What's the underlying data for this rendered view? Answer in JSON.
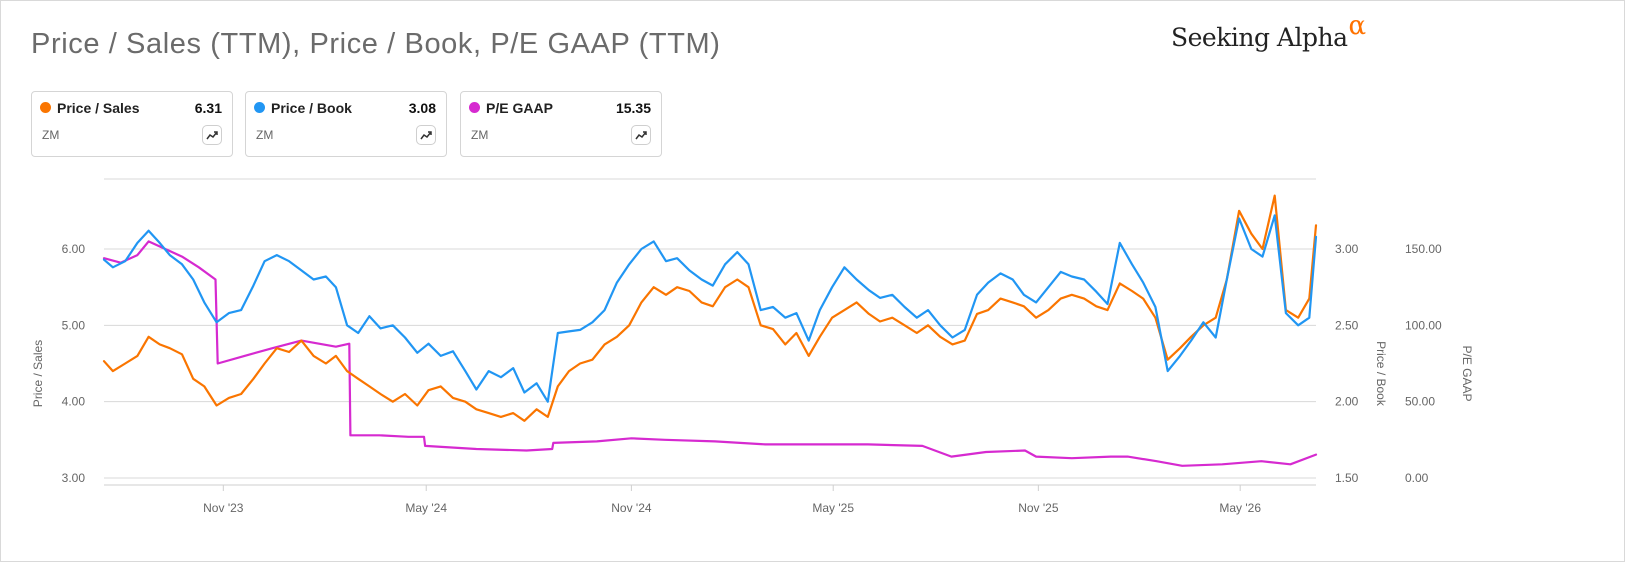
{
  "header": {
    "title": "Price / Sales (TTM), Price / Book, P/E GAAP (TTM)",
    "brand_name": "Seeking Alpha",
    "brand_symbol": "α",
    "brand_symbol_color": "#ff7200"
  },
  "legend": [
    {
      "name": "Price / Sales",
      "value": "6.31",
      "ticker": "ZM",
      "color": "#fa7500",
      "icon": "trend-line-icon"
    },
    {
      "name": "Price / Book",
      "value": "3.08",
      "ticker": "ZM",
      "color": "#2196f3",
      "icon": "trend-line-icon"
    },
    {
      "name": "P/E GAAP",
      "value": "15.35",
      "ticker": "ZM",
      "color": "#d62ad0",
      "icon": "trend-line-icon"
    }
  ],
  "chart_data": {
    "type": "line",
    "x_type": "date",
    "x_range": [
      "2023-07-17",
      "2026-07-08"
    ],
    "x_tick_labels": [
      "Nov '23",
      "May '24",
      "Nov '24",
      "May '25",
      "Nov '25",
      "May '26"
    ],
    "x_tick_dates": [
      "2023-11-01",
      "2024-05-01",
      "2024-11-01",
      "2025-05-01",
      "2025-11-01",
      "2026-05-01"
    ],
    "grid": true,
    "legend_position": "top",
    "axes": [
      {
        "id": "ps",
        "label": "Price / Sales",
        "side": "left",
        "ticks": [
          "3.00",
          "4.00",
          "5.00",
          "6.00"
        ],
        "range": [
          3.0,
          6.0
        ]
      },
      {
        "id": "pb",
        "label": "Price / Book",
        "side": "right",
        "ticks": [
          "1.50",
          "2.00",
          "2.50",
          "3.00"
        ],
        "range": [
          1.5,
          3.0
        ]
      },
      {
        "id": "pe",
        "label": "P/E GAAP",
        "side": "right",
        "ticks": [
          "0.00",
          "50.00",
          "100.00",
          "150.00"
        ],
        "range": [
          0,
          150
        ]
      }
    ],
    "series": [
      {
        "name": "Price / Sales",
        "axis": "ps",
        "color": "#fa7500",
        "points": [
          [
            "2023-07-17",
            4.53
          ],
          [
            "2023-07-25",
            4.4
          ],
          [
            "2023-08-05",
            4.5
          ],
          [
            "2023-08-16",
            4.6
          ],
          [
            "2023-08-26",
            4.85
          ],
          [
            "2023-09-05",
            4.75
          ],
          [
            "2023-09-14",
            4.7
          ],
          [
            "2023-09-25",
            4.62
          ],
          [
            "2023-10-05",
            4.3
          ],
          [
            "2023-10-15",
            4.2
          ],
          [
            "2023-10-26",
            3.95
          ],
          [
            "2023-11-06",
            4.05
          ],
          [
            "2023-11-17",
            4.1
          ],
          [
            "2023-11-28",
            4.3
          ],
          [
            "2023-12-08",
            4.5
          ],
          [
            "2023-12-19",
            4.7
          ],
          [
            "2023-12-30",
            4.65
          ],
          [
            "2024-01-10",
            4.8
          ],
          [
            "2024-01-21",
            4.6
          ],
          [
            "2024-02-01",
            4.5
          ],
          [
            "2024-02-10",
            4.6
          ],
          [
            "2024-02-20",
            4.4
          ],
          [
            "2024-03-01",
            4.3
          ],
          [
            "2024-03-11",
            4.2
          ],
          [
            "2024-03-21",
            4.1
          ],
          [
            "2024-04-01",
            4.0
          ],
          [
            "2024-04-12",
            4.1
          ],
          [
            "2024-04-23",
            3.95
          ],
          [
            "2024-05-03",
            4.15
          ],
          [
            "2024-05-14",
            4.2
          ],
          [
            "2024-05-25",
            4.05
          ],
          [
            "2024-06-05",
            4.0
          ],
          [
            "2024-06-15",
            3.9
          ],
          [
            "2024-06-26",
            3.85
          ],
          [
            "2024-07-07",
            3.8
          ],
          [
            "2024-07-18",
            3.85
          ],
          [
            "2024-07-28",
            3.75
          ],
          [
            "2024-08-08",
            3.9
          ],
          [
            "2024-08-18",
            3.8
          ],
          [
            "2024-08-27",
            4.2
          ],
          [
            "2024-09-06",
            4.4
          ],
          [
            "2024-09-16",
            4.5
          ],
          [
            "2024-09-27",
            4.55
          ],
          [
            "2024-10-08",
            4.75
          ],
          [
            "2024-10-19",
            4.85
          ],
          [
            "2024-10-30",
            5.0
          ],
          [
            "2024-11-10",
            5.3
          ],
          [
            "2024-11-21",
            5.5
          ],
          [
            "2024-12-02",
            5.4
          ],
          [
            "2024-12-12",
            5.5
          ],
          [
            "2024-12-23",
            5.45
          ],
          [
            "2025-01-03",
            5.3
          ],
          [
            "2025-01-13",
            5.25
          ],
          [
            "2025-01-24",
            5.5
          ],
          [
            "2025-02-04",
            5.6
          ],
          [
            "2025-02-14",
            5.5
          ],
          [
            "2025-02-25",
            5.0
          ],
          [
            "2025-03-08",
            4.95
          ],
          [
            "2025-03-19",
            4.75
          ],
          [
            "2025-03-29",
            4.9
          ],
          [
            "2025-04-09",
            4.6
          ],
          [
            "2025-04-19",
            4.85
          ],
          [
            "2025-04-30",
            5.1
          ],
          [
            "2025-05-11",
            5.2
          ],
          [
            "2025-05-22",
            5.3
          ],
          [
            "2025-06-02",
            5.15
          ],
          [
            "2025-06-12",
            5.05
          ],
          [
            "2025-06-23",
            5.1
          ],
          [
            "2025-07-04",
            5.0
          ],
          [
            "2025-07-15",
            4.9
          ],
          [
            "2025-07-25",
            5.0
          ],
          [
            "2025-08-05",
            4.85
          ],
          [
            "2025-08-16",
            4.75
          ],
          [
            "2025-08-27",
            4.8
          ],
          [
            "2025-09-07",
            5.15
          ],
          [
            "2025-09-17",
            5.2
          ],
          [
            "2025-09-28",
            5.35
          ],
          [
            "2025-10-09",
            5.3
          ],
          [
            "2025-10-19",
            5.25
          ],
          [
            "2025-10-30",
            5.1
          ],
          [
            "2025-11-10",
            5.2
          ],
          [
            "2025-11-21",
            5.35
          ],
          [
            "2025-12-01",
            5.4
          ],
          [
            "2025-12-12",
            5.35
          ],
          [
            "2025-12-23",
            5.25
          ],
          [
            "2026-01-02",
            5.2
          ],
          [
            "2026-01-13",
            5.55
          ],
          [
            "2026-01-24",
            5.45
          ],
          [
            "2026-02-03",
            5.35
          ],
          [
            "2026-02-14",
            5.1
          ],
          [
            "2026-02-25",
            4.55
          ],
          [
            "2026-03-08",
            4.7
          ],
          [
            "2026-03-18",
            4.85
          ],
          [
            "2026-03-29",
            5.0
          ],
          [
            "2026-04-09",
            5.1
          ],
          [
            "2026-04-19",
            5.6
          ],
          [
            "2026-04-30",
            6.5
          ],
          [
            "2026-05-11",
            6.2
          ],
          [
            "2026-05-21",
            6.0
          ],
          [
            "2026-06-01",
            6.7
          ],
          [
            "2026-06-11",
            5.2
          ],
          [
            "2026-06-22",
            5.1
          ],
          [
            "2026-07-02",
            5.35
          ],
          [
            "2026-07-08",
            6.31
          ]
        ]
      },
      {
        "name": "Price / Book",
        "axis": "pb",
        "color": "#2196f3",
        "points": [
          [
            "2023-07-17",
            2.93
          ],
          [
            "2023-07-25",
            2.88
          ],
          [
            "2023-08-05",
            2.92
          ],
          [
            "2023-08-16",
            3.04
          ],
          [
            "2023-08-26",
            3.12
          ],
          [
            "2023-09-05",
            3.04
          ],
          [
            "2023-09-14",
            2.96
          ],
          [
            "2023-09-25",
            2.9
          ],
          [
            "2023-10-05",
            2.8
          ],
          [
            "2023-10-15",
            2.65
          ],
          [
            "2023-10-26",
            2.52
          ],
          [
            "2023-11-06",
            2.58
          ],
          [
            "2023-11-17",
            2.6
          ],
          [
            "2023-11-28",
            2.76
          ],
          [
            "2023-12-08",
            2.92
          ],
          [
            "2023-12-19",
            2.96
          ],
          [
            "2023-12-30",
            2.92
          ],
          [
            "2024-01-10",
            2.86
          ],
          [
            "2024-01-21",
            2.8
          ],
          [
            "2024-02-01",
            2.82
          ],
          [
            "2024-02-10",
            2.75
          ],
          [
            "2024-02-20",
            2.5
          ],
          [
            "2024-03-01",
            2.45
          ],
          [
            "2024-03-11",
            2.56
          ],
          [
            "2024-03-21",
            2.48
          ],
          [
            "2024-04-01",
            2.5
          ],
          [
            "2024-04-12",
            2.42
          ],
          [
            "2024-04-23",
            2.32
          ],
          [
            "2024-05-03",
            2.38
          ],
          [
            "2024-05-14",
            2.3
          ],
          [
            "2024-05-25",
            2.33
          ],
          [
            "2024-06-05",
            2.2
          ],
          [
            "2024-06-15",
            2.08
          ],
          [
            "2024-06-26",
            2.2
          ],
          [
            "2024-07-07",
            2.16
          ],
          [
            "2024-07-18",
            2.22
          ],
          [
            "2024-07-28",
            2.06
          ],
          [
            "2024-08-08",
            2.12
          ],
          [
            "2024-08-18",
            2.0
          ],
          [
            "2024-08-27",
            2.45
          ],
          [
            "2024-09-06",
            2.46
          ],
          [
            "2024-09-16",
            2.47
          ],
          [
            "2024-09-27",
            2.52
          ],
          [
            "2024-10-08",
            2.6
          ],
          [
            "2024-10-19",
            2.78
          ],
          [
            "2024-10-30",
            2.9
          ],
          [
            "2024-11-10",
            3.0
          ],
          [
            "2024-11-21",
            3.05
          ],
          [
            "2024-12-02",
            2.92
          ],
          [
            "2024-12-12",
            2.94
          ],
          [
            "2024-12-23",
            2.86
          ],
          [
            "2025-01-03",
            2.8
          ],
          [
            "2025-01-13",
            2.76
          ],
          [
            "2025-01-24",
            2.9
          ],
          [
            "2025-02-04",
            2.98
          ],
          [
            "2025-02-14",
            2.9
          ],
          [
            "2025-02-25",
            2.6
          ],
          [
            "2025-03-08",
            2.62
          ],
          [
            "2025-03-19",
            2.55
          ],
          [
            "2025-03-29",
            2.58
          ],
          [
            "2025-04-09",
            2.4
          ],
          [
            "2025-04-19",
            2.6
          ],
          [
            "2025-04-30",
            2.75
          ],
          [
            "2025-05-11",
            2.88
          ],
          [
            "2025-05-22",
            2.8
          ],
          [
            "2025-06-02",
            2.73
          ],
          [
            "2025-06-12",
            2.68
          ],
          [
            "2025-06-23",
            2.7
          ],
          [
            "2025-07-04",
            2.62
          ],
          [
            "2025-07-15",
            2.55
          ],
          [
            "2025-07-25",
            2.6
          ],
          [
            "2025-08-05",
            2.5
          ],
          [
            "2025-08-16",
            2.42
          ],
          [
            "2025-08-27",
            2.47
          ],
          [
            "2025-09-07",
            2.7
          ],
          [
            "2025-09-17",
            2.78
          ],
          [
            "2025-09-28",
            2.84
          ],
          [
            "2025-10-09",
            2.8
          ],
          [
            "2025-10-19",
            2.7
          ],
          [
            "2025-10-30",
            2.65
          ],
          [
            "2025-11-10",
            2.75
          ],
          [
            "2025-11-21",
            2.85
          ],
          [
            "2025-12-01",
            2.82
          ],
          [
            "2025-12-12",
            2.8
          ],
          [
            "2025-12-23",
            2.72
          ],
          [
            "2026-01-02",
            2.64
          ],
          [
            "2026-01-13",
            3.04
          ],
          [
            "2026-01-24",
            2.9
          ],
          [
            "2026-02-03",
            2.78
          ],
          [
            "2026-02-14",
            2.62
          ],
          [
            "2026-02-25",
            2.2
          ],
          [
            "2026-03-08",
            2.3
          ],
          [
            "2026-03-18",
            2.4
          ],
          [
            "2026-03-29",
            2.52
          ],
          [
            "2026-04-09",
            2.42
          ],
          [
            "2026-04-19",
            2.8
          ],
          [
            "2026-04-30",
            3.2
          ],
          [
            "2026-05-11",
            3.0
          ],
          [
            "2026-05-21",
            2.95
          ],
          [
            "2026-06-01",
            3.22
          ],
          [
            "2026-06-11",
            2.58
          ],
          [
            "2026-06-22",
            2.5
          ],
          [
            "2026-07-02",
            2.55
          ],
          [
            "2026-07-08",
            3.08
          ]
        ]
      },
      {
        "name": "P/E GAAP",
        "axis": "pe",
        "color": "#d62ad0",
        "points": [
          [
            "2023-07-17",
            144
          ],
          [
            "2023-08-01",
            141
          ],
          [
            "2023-08-16",
            146
          ],
          [
            "2023-08-26",
            155
          ],
          [
            "2023-09-10",
            150
          ],
          [
            "2023-09-25",
            145
          ],
          [
            "2023-10-10",
            138
          ],
          [
            "2023-10-25",
            130
          ],
          [
            "2023-10-27",
            75
          ],
          [
            "2023-11-20",
            80
          ],
          [
            "2023-12-15",
            85
          ],
          [
            "2024-01-10",
            90
          ],
          [
            "2024-02-10",
            86
          ],
          [
            "2024-02-22",
            88
          ],
          [
            "2024-02-23",
            28
          ],
          [
            "2024-03-20",
            28
          ],
          [
            "2024-04-15",
            27
          ],
          [
            "2024-04-29",
            27
          ],
          [
            "2024-04-30",
            21
          ],
          [
            "2024-06-15",
            19
          ],
          [
            "2024-07-30",
            18
          ],
          [
            "2024-08-22",
            19
          ],
          [
            "2024-08-23",
            23
          ],
          [
            "2024-10-01",
            24
          ],
          [
            "2024-11-01",
            26
          ],
          [
            "2024-12-01",
            25
          ],
          [
            "2025-01-15",
            24
          ],
          [
            "2025-03-01",
            22
          ],
          [
            "2025-04-15",
            22
          ],
          [
            "2025-06-01",
            22
          ],
          [
            "2025-07-20",
            21
          ],
          [
            "2025-08-15",
            14
          ],
          [
            "2025-09-15",
            17
          ],
          [
            "2025-10-20",
            18
          ],
          [
            "2025-10-30",
            14
          ],
          [
            "2025-12-01",
            13
          ],
          [
            "2026-01-05",
            14
          ],
          [
            "2026-01-20",
            14
          ],
          [
            "2026-02-15",
            11
          ],
          [
            "2026-03-10",
            8
          ],
          [
            "2026-04-15",
            9
          ],
          [
            "2026-05-20",
            11
          ],
          [
            "2026-06-15",
            9
          ],
          [
            "2026-07-08",
            15.35
          ]
        ]
      }
    ]
  }
}
